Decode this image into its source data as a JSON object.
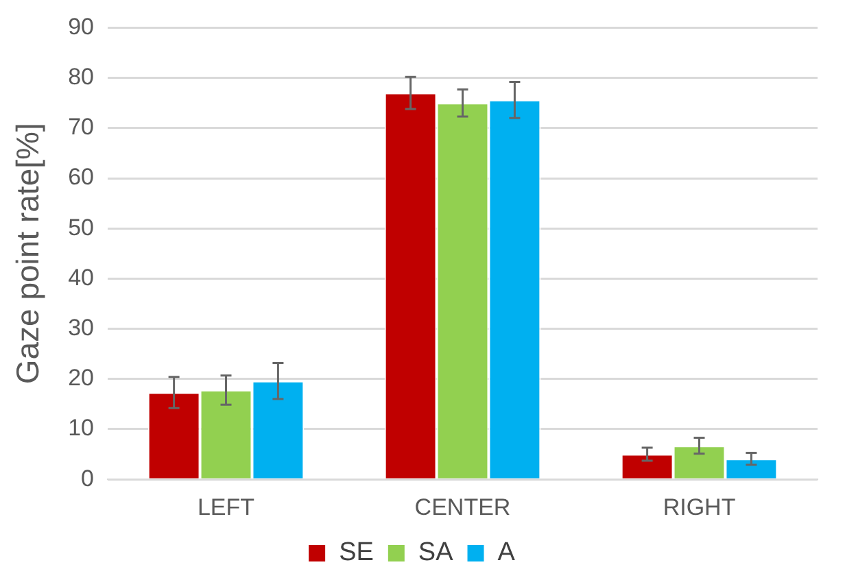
{
  "chart_data": {
    "type": "bar",
    "ylabel": "Gaze point rate[%]",
    "categories": [
      "LEFT",
      "CENTER",
      "RIGHT"
    ],
    "series": [
      {
        "name": "SE",
        "color": "#c00000",
        "values": [
          17.3,
          77.0,
          5.0
        ],
        "errors": [
          3.1,
          3.2,
          1.3
        ]
      },
      {
        "name": "SA",
        "color": "#92d050",
        "values": [
          17.8,
          75.0,
          6.7
        ],
        "errors": [
          2.9,
          2.7,
          1.6
        ]
      },
      {
        "name": "A",
        "color": "#00b0f0",
        "values": [
          19.6,
          75.6,
          4.1
        ],
        "errors": [
          3.6,
          3.6,
          1.2
        ]
      }
    ],
    "ylim": [
      0,
      90
    ],
    "yticks": [
      0,
      10,
      20,
      30,
      40,
      50,
      60,
      70,
      80,
      90
    ],
    "grid": "y",
    "legend": "bottom"
  }
}
